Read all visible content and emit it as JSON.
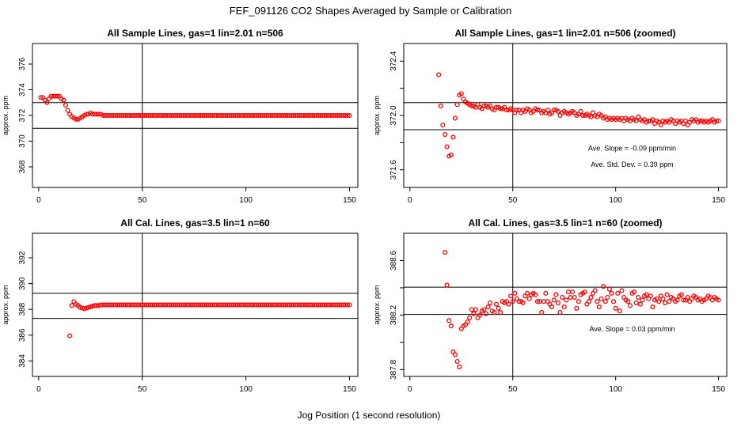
{
  "figure": {
    "title": "FEF_091126  CO2 Shapes Averaged by Sample or Calibration",
    "xlabel": "Jog Position (1 second resolution)"
  },
  "chart_data": [
    {
      "type": "scatter",
      "title": "All Sample Lines, gas=1 lin=2.01 n=506",
      "xlabel": "",
      "ylabel": "approx. ppm",
      "xlim": [
        -3,
        154
      ],
      "ylim": [
        366.4,
        377.6
      ],
      "xticks": [
        0,
        50,
        100,
        150
      ],
      "yticks": [
        368,
        370,
        372,
        374,
        376
      ],
      "ytick_labels": [
        "368",
        "",
        "372",
        "",
        "376"
      ],
      "ytick_labels_alt": [
        "",
        "370",
        "",
        "374",
        ""
      ],
      "hlines": [
        373.0,
        371.0
      ],
      "vlines": [
        50
      ],
      "series": [
        {
          "color": "#ff0000",
          "x": [
            1,
            2,
            3,
            4,
            5,
            6,
            7,
            8,
            9,
            10,
            11,
            12,
            13,
            14,
            15,
            16,
            17,
            18,
            19,
            20,
            21,
            22,
            23,
            24,
            25,
            26,
            27,
            28,
            29,
            30
          ],
          "y": [
            373.4,
            373.4,
            373.2,
            373.0,
            373.3,
            373.5,
            373.5,
            373.5,
            373.5,
            373.5,
            373.3,
            373.2,
            372.8,
            372.4,
            372.1,
            371.9,
            371.8,
            371.7,
            371.7,
            371.8,
            371.9,
            372.0,
            372.1,
            372.1,
            372.2,
            372.1,
            372.1,
            372.1,
            372.1,
            372.1
          ],
          "x_tail_start": 31,
          "x_tail_end": 150,
          "y_tail": 372.0
        }
      ],
      "annotations": []
    },
    {
      "type": "scatter",
      "title": "All Sample Lines, gas=1 lin=2.01 n=506 (zoomed)",
      "xlabel": "",
      "ylabel": "approx. ppm",
      "xlim": [
        -3,
        154
      ],
      "ylim": [
        371.47,
        372.53
      ],
      "xticks": [
        0,
        50,
        100,
        150
      ],
      "yticks": [
        371.6,
        371.8,
        372.0,
        372.2,
        372.4
      ],
      "ytick_labels": [
        "371.6",
        "",
        "372.0",
        "",
        "372.4"
      ],
      "hlines": [
        372.095,
        371.895
      ],
      "vlines": [
        50
      ],
      "series": [
        {
          "color": "#ff0000",
          "x": [
            14,
            15,
            16,
            17,
            18,
            19,
            20,
            21,
            22,
            23,
            24,
            25,
            26,
            27,
            28,
            29,
            30,
            31,
            32,
            33,
            34,
            35,
            36,
            37,
            38,
            39,
            40,
            41,
            42,
            43,
            44,
            45,
            46,
            47,
            48,
            49,
            50,
            51,
            52,
            53,
            54,
            55,
            56,
            57,
            58,
            59,
            60,
            61,
            62,
            63,
            64,
            65,
            66,
            67,
            68,
            69,
            70,
            71,
            72,
            73,
            74,
            75,
            76,
            77,
            78,
            79,
            80,
            81,
            82,
            83,
            84,
            85,
            86,
            87,
            88,
            89,
            90,
            91,
            92,
            93,
            94,
            95,
            96,
            97,
            98,
            99,
            100,
            101,
            102,
            103,
            104,
            105,
            106,
            107,
            108,
            109,
            110,
            111,
            112,
            113,
            114,
            115,
            116,
            117,
            118,
            119,
            120,
            121,
            122,
            123,
            124,
            125,
            126,
            127,
            128,
            129,
            130,
            131,
            132,
            133,
            134,
            135,
            136,
            137,
            138,
            139,
            140,
            141,
            142,
            143,
            144,
            145,
            146,
            147,
            148,
            149,
            150
          ],
          "y": [
            372.3,
            372.07,
            371.93,
            371.86,
            371.77,
            371.7,
            371.71,
            371.84,
            371.98,
            372.08,
            372.15,
            372.16,
            372.12,
            372.1,
            372.09,
            372.08,
            372.07,
            372.07,
            372.06,
            372.08,
            372.06,
            372.05,
            372.07,
            372.07,
            372.06,
            372.07,
            372.05,
            372.04,
            372.06,
            372.06,
            372.05,
            372.05,
            372.06,
            372.04,
            372.04,
            372.05,
            372.04,
            372.02,
            372.04,
            372.04,
            372.02,
            372.04,
            372.03,
            372.05,
            372.04,
            372.02,
            372.03,
            372.05,
            372.04,
            372.04,
            372.02,
            372.03,
            372.02,
            372.04,
            372.01,
            372.02,
            372.04,
            372.04,
            372.03,
            372.0,
            372.02,
            372.03,
            372.02,
            372.01,
            372.02,
            372.03,
            372.02,
            372.0,
            372.01,
            372.03,
            372.0,
            372.0,
            372.01,
            372.0,
            371.99,
            372.02,
            372.0,
            371.99,
            372.01,
            372.0,
            371.98,
            371.99,
            371.97,
            371.98,
            371.97,
            371.98,
            371.97,
            371.98,
            371.97,
            371.98,
            371.96,
            371.98,
            371.97,
            371.96,
            371.98,
            371.97,
            371.96,
            371.99,
            371.97,
            371.96,
            371.97,
            371.95,
            371.96,
            371.96,
            371.97,
            371.94,
            371.96,
            371.95,
            371.93,
            371.96,
            371.95,
            371.96,
            371.95,
            371.97,
            371.96,
            371.94,
            371.96,
            371.95,
            371.96,
            371.94,
            371.96,
            371.93,
            371.95,
            371.97,
            371.96,
            371.97,
            371.95,
            371.96,
            371.96,
            371.95,
            371.96,
            371.95,
            371.96,
            371.97,
            371.95,
            371.96,
            371.96
          ]
        }
      ],
      "annotations": [
        {
          "text": "Ave. Slope =  -0.09  ppm/min",
          "x": 108,
          "y": 371.74
        },
        {
          "text": "Ave. Std. Dev. =  0.39  ppm",
          "x": 108,
          "y": 371.62
        }
      ]
    },
    {
      "type": "scatter",
      "title": "All Cal. Lines, gas=3.5 lin=1 n=60",
      "xlabel": "",
      "ylabel": "approx. ppm",
      "xlim": [
        -3,
        154
      ],
      "ylim": [
        382.8,
        393.9
      ],
      "xticks": [
        0,
        50,
        100,
        150
      ],
      "yticks": [
        384,
        386,
        388,
        390,
        392
      ],
      "ytick_labels": [
        "384",
        "386",
        "388",
        "390",
        "392"
      ],
      "hlines": [
        389.25,
        387.3
      ],
      "vlines": [
        50
      ],
      "series": [
        {
          "color": "#ff0000",
          "x": [
            15,
            16,
            17,
            18,
            19,
            20,
            21,
            22,
            23,
            24,
            25,
            26,
            27,
            28,
            29,
            30
          ],
          "y": [
            385.95,
            388.3,
            388.6,
            388.4,
            388.3,
            388.15,
            388.1,
            388.05,
            388.1,
            388.15,
            388.2,
            388.25,
            388.3,
            388.3,
            388.3,
            388.35
          ],
          "x_tail_start": 31,
          "x_tail_end": 150,
          "y_tail": 388.35
        }
      ],
      "annotations": []
    },
    {
      "type": "scatter",
      "title": "All Cal. Lines, gas=3.5 lin=1 n=60 (zoomed)",
      "xlabel": "",
      "ylabel": "approx. ppm",
      "xlim": [
        -3,
        154
      ],
      "ylim": [
        387.75,
        388.8
      ],
      "xticks": [
        0,
        50,
        100,
        150
      ],
      "yticks": [
        387.8,
        388.0,
        388.2,
        388.4,
        388.6
      ],
      "ytick_labels": [
        "387.8",
        "",
        "388.2",
        "",
        "388.6"
      ],
      "hlines": [
        388.405,
        388.205
      ],
      "vlines": [
        50
      ],
      "series": [
        {
          "color": "#ff0000",
          "x": [
            17,
            18,
            19,
            20,
            21,
            22,
            23,
            24,
            25,
            26,
            27,
            28,
            29,
            30,
            31,
            32,
            33,
            34,
            35,
            36,
            37,
            38,
            39,
            40,
            41,
            42,
            43,
            44,
            45,
            46,
            47,
            48,
            49,
            50,
            51,
            52,
            53,
            54,
            55,
            56,
            57,
            58,
            59,
            60,
            61,
            62,
            63,
            64,
            65,
            66,
            67,
            68,
            69,
            70,
            71,
            72,
            73,
            74,
            75,
            76,
            77,
            78,
            79,
            80,
            81,
            82,
            83,
            84,
            85,
            86,
            87,
            88,
            89,
            90,
            91,
            92,
            93,
            94,
            95,
            96,
            97,
            98,
            99,
            100,
            101,
            102,
            103,
            104,
            105,
            106,
            107,
            108,
            109,
            110,
            111,
            112,
            113,
            114,
            115,
            116,
            117,
            118,
            119,
            120,
            121,
            122,
            123,
            124,
            125,
            126,
            127,
            128,
            129,
            130,
            131,
            132,
            133,
            134,
            135,
            136,
            137,
            138,
            139,
            140,
            141,
            142,
            143,
            144,
            145,
            146,
            147,
            148,
            149,
            150
          ],
          "y": [
            388.66,
            388.42,
            388.16,
            388.12,
            387.93,
            387.91,
            387.86,
            387.82,
            388.1,
            388.12,
            388.13,
            388.15,
            388.18,
            388.24,
            388.21,
            388.24,
            388.18,
            388.2,
            388.23,
            388.24,
            388.21,
            388.26,
            388.29,
            388.23,
            388.22,
            388.28,
            388.25,
            388.22,
            388.3,
            388.29,
            388.3,
            388.28,
            388.34,
            388.3,
            388.36,
            388.32,
            388.3,
            388.3,
            388.29,
            388.34,
            388.36,
            388.32,
            388.35,
            388.36,
            388.35,
            388.3,
            388.3,
            388.22,
            388.3,
            388.36,
            388.3,
            388.28,
            388.26,
            388.31,
            388.35,
            388.29,
            388.22,
            388.33,
            388.26,
            388.31,
            388.37,
            388.33,
            388.37,
            388.33,
            388.25,
            388.3,
            388.35,
            388.36,
            388.37,
            388.28,
            388.3,
            388.33,
            388.36,
            388.38,
            388.3,
            388.26,
            388.32,
            388.41,
            388.3,
            388.33,
            388.39,
            388.36,
            388.3,
            388.25,
            388.36,
            388.23,
            388.38,
            388.33,
            388.31,
            388.3,
            388.27,
            388.36,
            388.37,
            388.29,
            388.33,
            388.28,
            388.31,
            388.34,
            388.35,
            388.32,
            388.34,
            388.26,
            388.31,
            388.32,
            388.3,
            388.34,
            388.32,
            388.29,
            388.35,
            388.3,
            388.33,
            388.32,
            388.3,
            388.31,
            388.34,
            388.35,
            388.31,
            388.31,
            388.33,
            388.3,
            388.32,
            388.34,
            388.33,
            388.31,
            388.32,
            388.3,
            388.31,
            388.32,
            388.34,
            388.33,
            388.31,
            388.33,
            388.32,
            388.31
          ],
          "x_tail_start": 0,
          "x_tail_end": 0,
          "y_tail": 0
        }
      ],
      "annotations": [
        {
          "text": "Ave. Slope =  0.03  ppm/min",
          "x": 108,
          "y": 388.08
        }
      ]
    }
  ]
}
